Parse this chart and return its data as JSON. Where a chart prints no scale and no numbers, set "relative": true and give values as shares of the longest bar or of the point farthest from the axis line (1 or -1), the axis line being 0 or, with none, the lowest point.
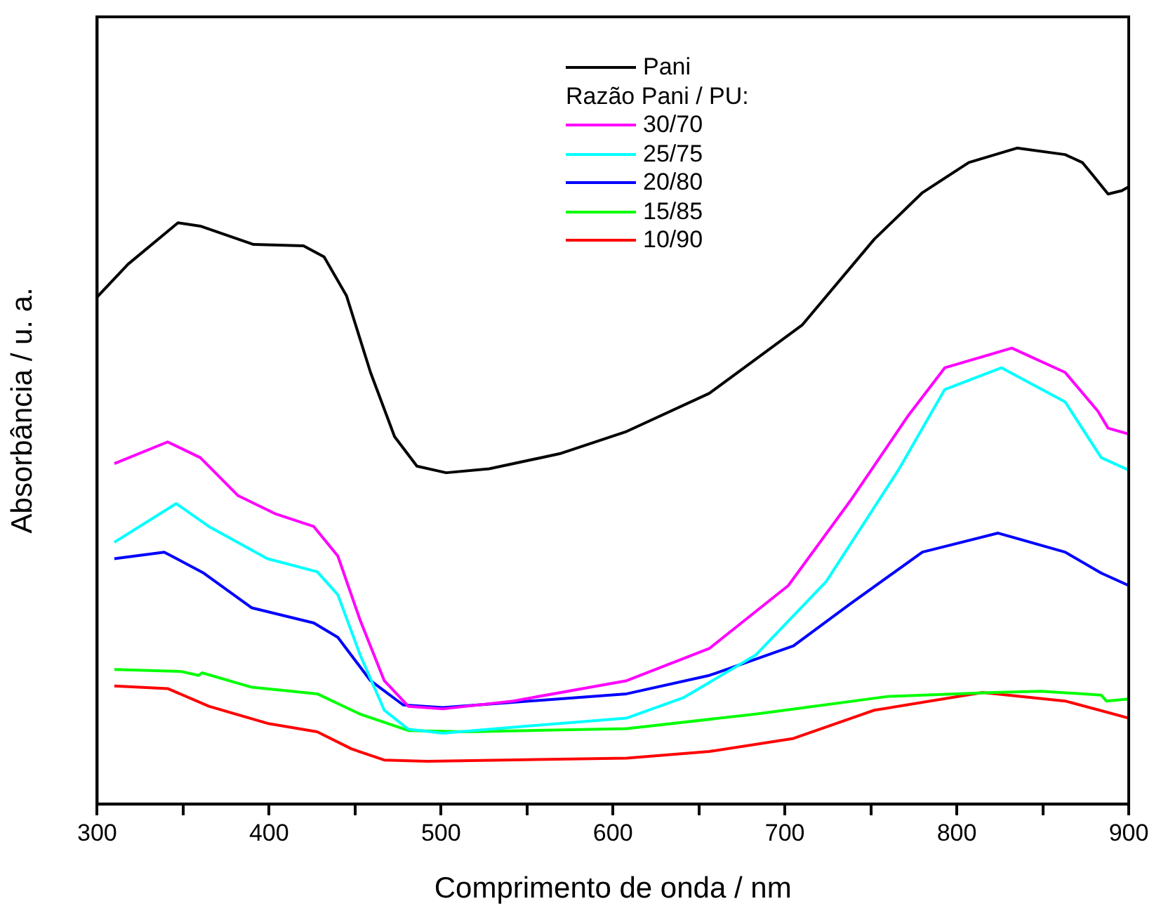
{
  "chart_data": {
    "type": "line",
    "xlabel": "Comprimento de onda / nm",
    "ylabel": "Absorbância / u. a.",
    "legend_title": "Razão Pani / PU:",
    "legend": "top right",
    "relative": true,
    "grid": false,
    "marker": "none",
    "line_style": "solid",
    "xlim": [
      300,
      900
    ],
    "xticks": [
      300,
      {
        "value": 350,
        "label": null
      },
      400,
      {
        "value": 450,
        "label": null
      },
      500,
      {
        "value": 550,
        "label": null
      },
      600,
      {
        "value": 650,
        "label": null
      },
      700,
      {
        "value": 750,
        "label": null
      },
      800,
      {
        "value": 850,
        "label": null
      },
      900
    ],
    "series": [
      {
        "name": "Pani",
        "color": "#000000",
        "x": [
          300,
          318,
          347,
          360,
          391,
          420,
          432,
          445,
          459,
          473,
          486,
          503,
          528,
          569,
          608,
          656,
          710,
          752,
          780,
          807,
          835,
          863,
          873,
          879,
          888,
          896,
          900
        ],
        "values": [
          0.773,
          0.823,
          0.886,
          0.881,
          0.853,
          0.851,
          0.834,
          0.775,
          0.658,
          0.56,
          0.515,
          0.505,
          0.511,
          0.534,
          0.568,
          0.626,
          0.73,
          0.861,
          0.932,
          0.978,
          1,
          0.99,
          0.978,
          0.959,
          0.93,
          0.935,
          0.941
        ]
      },
      {
        "name": "30/70",
        "color": "#ff00ff",
        "x": [
          310,
          341,
          360,
          382,
          404,
          426,
          440,
          453,
          467,
          481,
          501,
          542,
          608,
          656,
          702,
          738,
          772,
          793,
          832,
          863,
          882,
          888,
          900
        ],
        "values": [
          0.519,
          0.552,
          0.528,
          0.47,
          0.442,
          0.423,
          0.378,
          0.28,
          0.188,
          0.149,
          0.145,
          0.157,
          0.188,
          0.237,
          0.333,
          0.462,
          0.593,
          0.665,
          0.695,
          0.658,
          0.599,
          0.573,
          0.564
        ]
      },
      {
        "name": "25/75",
        "color": "#00ffff",
        "x": [
          310,
          346,
          365,
          399,
          428,
          440,
          453,
          467,
          481,
          501,
          542,
          608,
          641,
          683,
          724,
          766,
          793,
          826,
          863,
          884,
          900
        ],
        "values": [
          0.399,
          0.458,
          0.423,
          0.374,
          0.354,
          0.319,
          0.227,
          0.143,
          0.114,
          0.108,
          0.117,
          0.131,
          0.162,
          0.227,
          0.339,
          0.509,
          0.632,
          0.665,
          0.613,
          0.528,
          0.509
        ]
      },
      {
        "name": "20/80",
        "color": "#0000ff",
        "x": [
          310,
          339,
          362,
          390,
          426,
          440,
          459,
          478,
          501,
          608,
          656,
          705,
          738,
          780,
          824,
          863,
          884,
          900
        ],
        "values": [
          0.374,
          0.384,
          0.352,
          0.299,
          0.276,
          0.254,
          0.188,
          0.151,
          0.147,
          0.168,
          0.196,
          0.241,
          0.305,
          0.384,
          0.413,
          0.384,
          0.352,
          0.333
        ]
      },
      {
        "name": "15/85",
        "color": "#00ff00",
        "x": [
          310,
          349,
          359,
          361,
          390,
          428,
          453,
          481,
          515,
          608,
          683,
          760,
          821,
          849,
          884,
          887,
          900
        ],
        "values": [
          0.205,
          0.202,
          0.196,
          0.2,
          0.178,
          0.168,
          0.137,
          0.112,
          0.11,
          0.115,
          0.137,
          0.164,
          0.17,
          0.172,
          0.166,
          0.157,
          0.16
        ]
      },
      {
        "name": "10/90",
        "color": "#ff0000",
        "x": [
          310,
          341,
          365,
          399,
          428,
          448,
          467,
          492,
          608,
          656,
          705,
          752,
          815,
          863,
          900
        ],
        "values": [
          0.18,
          0.176,
          0.149,
          0.123,
          0.11,
          0.084,
          0.067,
          0.065,
          0.07,
          0.08,
          0.1,
          0.143,
          0.17,
          0.157,
          0.131
        ]
      }
    ]
  }
}
